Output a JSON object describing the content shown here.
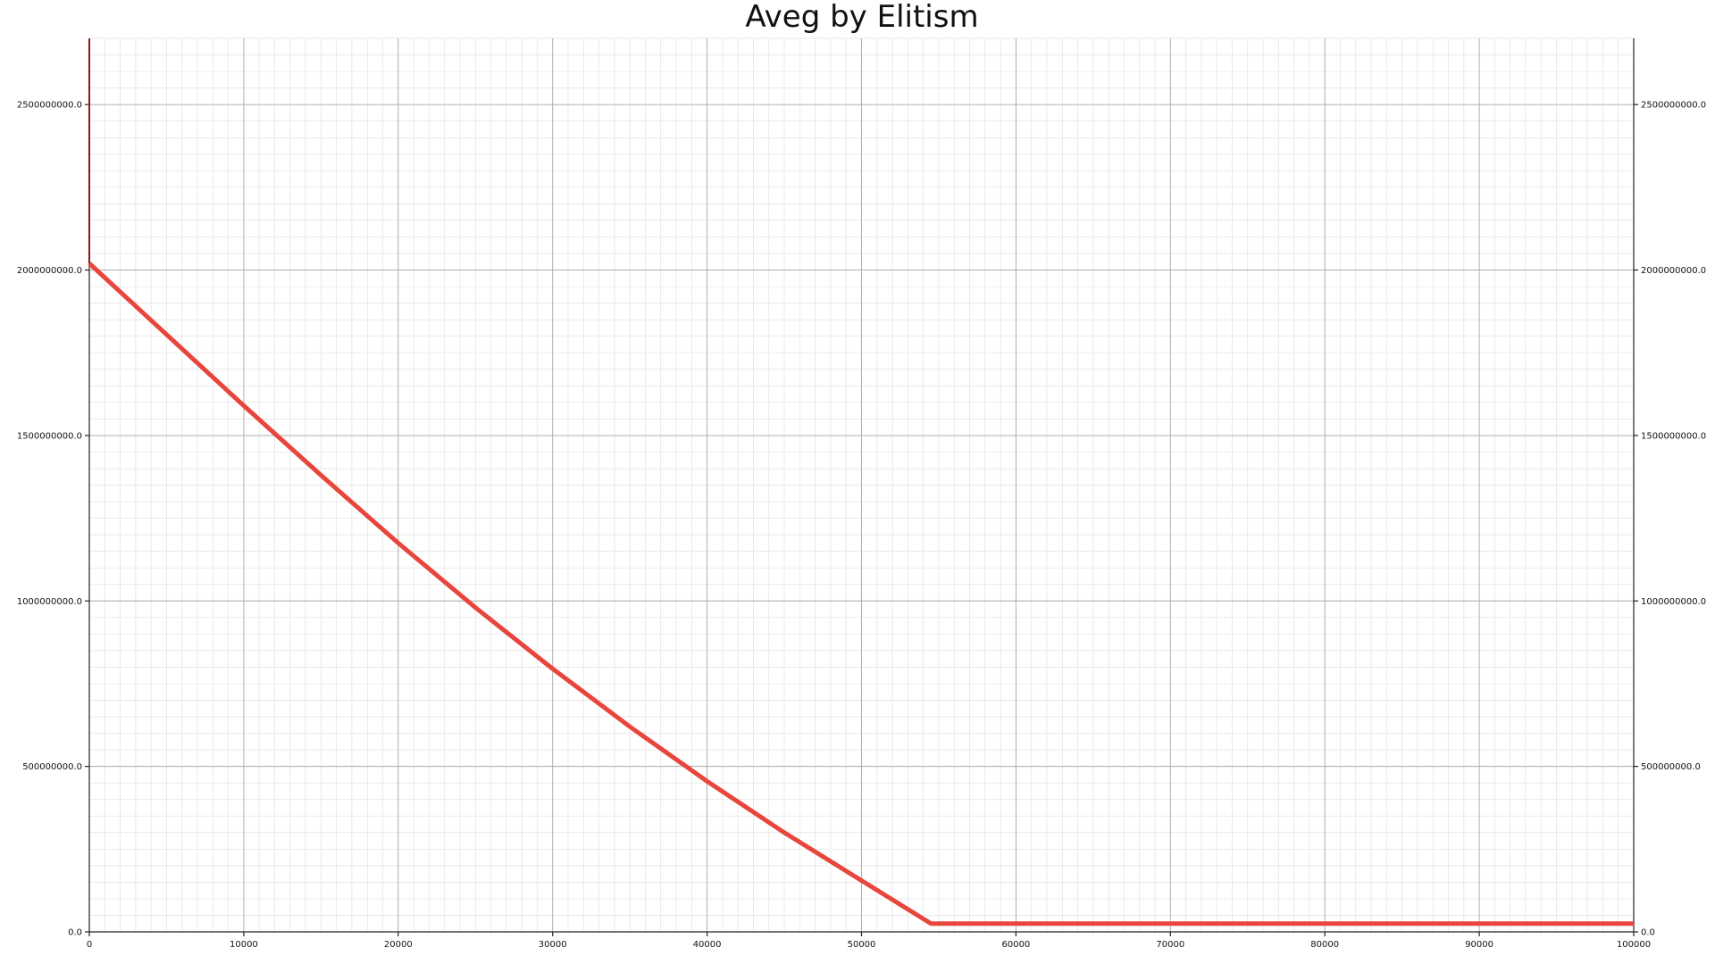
{
  "chart_data": {
    "type": "line",
    "title": "Aveg by Elitism",
    "xlabel": "",
    "ylabel": "",
    "xlim": [
      0,
      100000
    ],
    "ylim": [
      0,
      2700000000
    ],
    "grid": true,
    "x_ticks": [
      0,
      10000,
      20000,
      30000,
      40000,
      50000,
      60000,
      70000,
      80000,
      90000,
      100000
    ],
    "x_tick_labels": [
      "0",
      "10000",
      "20000",
      "30000",
      "40000",
      "50000",
      "60000",
      "70000",
      "80000",
      "90000",
      "100000"
    ],
    "y_ticks": [
      0,
      500000000,
      1000000000,
      1500000000,
      2000000000,
      2500000000
    ],
    "y_tick_labels": [
      "0.0",
      "500000000.0",
      "1000000000.0",
      "1500000000.0",
      "2000000000.0",
      "2500000000.0"
    ],
    "series": [
      {
        "color": "#e8453c",
        "x": [
          0,
          5000,
          10000,
          15000,
          20000,
          25000,
          30000,
          35000,
          40000,
          45000,
          50000,
          54500,
          60000,
          70000,
          80000,
          90000,
          100000
        ],
        "y": [
          2020000000,
          1805000000,
          1590000000,
          1380000000,
          1175000000,
          980000000,
          795000000,
          620000000,
          455000000,
          300000000,
          155000000,
          25000000,
          25000000,
          25000000,
          25000000,
          25000000,
          25000000
        ]
      },
      {
        "color": "#8b1a1a",
        "x": [
          0,
          0
        ],
        "y": [
          2020000000,
          2700000000
        ]
      }
    ]
  }
}
